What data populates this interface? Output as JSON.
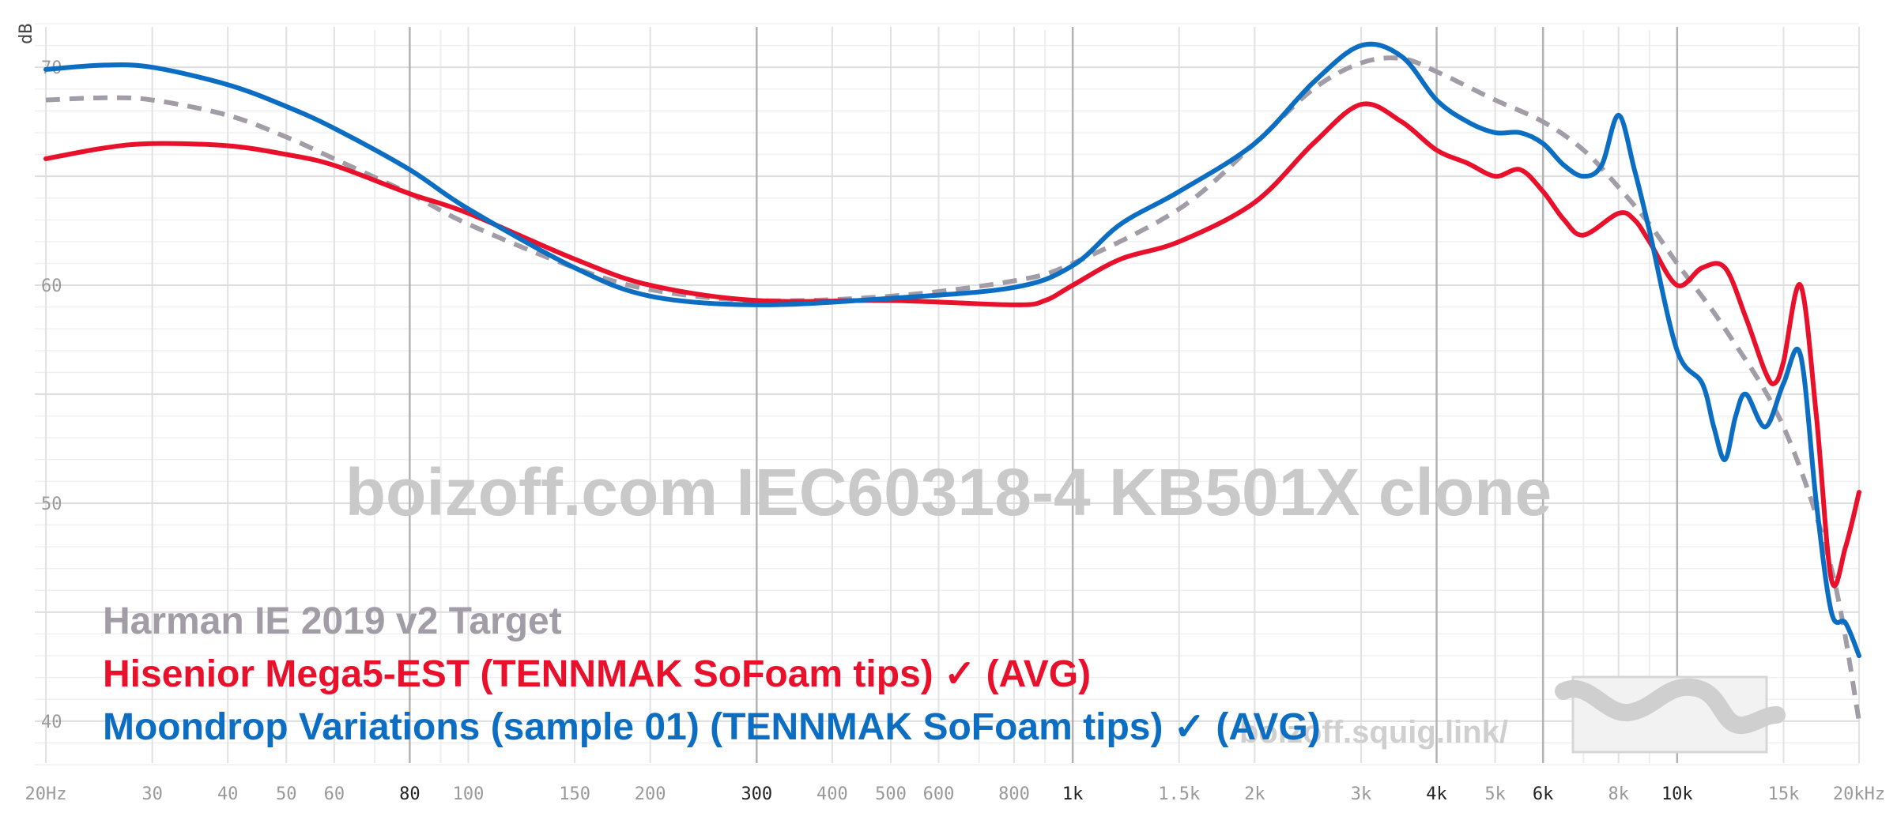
{
  "chart_data": {
    "type": "line",
    "title": "",
    "xlabel": "",
    "ylabel": "dB",
    "x_scale": "log",
    "xlim": [
      20,
      20000
    ],
    "ylim": [
      38,
      72
    ],
    "grid": true,
    "legend_position": "bottom-left",
    "watermark": "boizoff.com IEC60318-4 KB501X clone",
    "site_label": "boizoff.squig.link/",
    "x_ticks": [
      {
        "value": 20,
        "label": "20Hz",
        "major": false
      },
      {
        "value": 30,
        "label": "30",
        "major": false
      },
      {
        "value": 40,
        "label": "40",
        "major": false
      },
      {
        "value": 50,
        "label": "50",
        "major": false
      },
      {
        "value": 60,
        "label": "60",
        "major": false
      },
      {
        "value": 80,
        "label": "80",
        "major": true
      },
      {
        "value": 100,
        "label": "100",
        "major": false
      },
      {
        "value": 150,
        "label": "150",
        "major": false
      },
      {
        "value": 200,
        "label": "200",
        "major": false
      },
      {
        "value": 300,
        "label": "300",
        "major": true
      },
      {
        "value": 400,
        "label": "400",
        "major": false
      },
      {
        "value": 500,
        "label": "500",
        "major": false
      },
      {
        "value": 600,
        "label": "600",
        "major": false
      },
      {
        "value": 800,
        "label": "800",
        "major": false
      },
      {
        "value": 1000,
        "label": "1k",
        "major": true
      },
      {
        "value": 1500,
        "label": "1.5k",
        "major": false
      },
      {
        "value": 2000,
        "label": "2k",
        "major": false
      },
      {
        "value": 3000,
        "label": "3k",
        "major": false
      },
      {
        "value": 4000,
        "label": "4k",
        "major": true
      },
      {
        "value": 5000,
        "label": "5k",
        "major": false
      },
      {
        "value": 6000,
        "label": "6k",
        "major": true
      },
      {
        "value": 8000,
        "label": "8k",
        "major": false
      },
      {
        "value": 10000,
        "label": "10k",
        "major": true
      },
      {
        "value": 15000,
        "label": "15k",
        "major": false
      },
      {
        "value": 20000,
        "label": "20kHz",
        "major": false
      }
    ],
    "y_ticks": [
      {
        "value": 40,
        "label": "40"
      },
      {
        "value": 50,
        "label": "50"
      },
      {
        "value": 60,
        "label": "60"
      },
      {
        "value": 70,
        "label": "70"
      }
    ],
    "series": [
      {
        "name": "Harman IE 2019 v2 Target",
        "color": "#a29ca6",
        "dashed": true,
        "x": [
          20,
          25,
          30,
          40,
          50,
          60,
          80,
          100,
          150,
          200,
          300,
          500,
          800,
          1000,
          1500,
          2000,
          2500,
          3000,
          3500,
          4000,
          5000,
          6000,
          7000,
          8000,
          9000,
          10000,
          12000,
          15000,
          18000,
          20000
        ],
        "y": [
          68.5,
          68.6,
          68.5,
          67.8,
          66.8,
          65.8,
          64.2,
          62.8,
          60.8,
          59.8,
          59.3,
          59.5,
          60.2,
          61.0,
          63.5,
          66.5,
          69.0,
          70.2,
          70.4,
          69.8,
          68.5,
          67.5,
          66.2,
          64.5,
          62.8,
          61.0,
          58.0,
          53.5,
          47.0,
          40.0
        ]
      },
      {
        "name": "Hisenior Mega5-EST (TENNMAK SoFoam tips) ✓ (AVG)",
        "color": "#e8102a",
        "dashed": false,
        "x": [
          20,
          25,
          30,
          40,
          50,
          60,
          80,
          100,
          150,
          200,
          300,
          500,
          800,
          900,
          1000,
          1200,
          1500,
          2000,
          2500,
          3000,
          3500,
          4000,
          4500,
          5000,
          5500,
          6000,
          6500,
          7000,
          8000,
          8500,
          9000,
          10000,
          11000,
          12000,
          13000,
          14000,
          14500,
          15000,
          16000,
          17000,
          18000,
          19000,
          20000
        ],
        "y": [
          65.8,
          66.3,
          66.5,
          66.4,
          66.0,
          65.5,
          64.2,
          63.3,
          61.2,
          60.0,
          59.3,
          59.3,
          59.1,
          59.3,
          60.0,
          61.2,
          62.0,
          63.8,
          66.5,
          68.3,
          67.5,
          66.2,
          65.6,
          65.0,
          65.3,
          64.3,
          63.0,
          62.3,
          63.3,
          63.0,
          62.0,
          60.0,
          60.8,
          60.8,
          58.5,
          56.0,
          55.5,
          56.5,
          60.0,
          54.0,
          46.5,
          48.0,
          50.5
        ]
      },
      {
        "name": "Moondrop Variations (sample 01) (TENNMAK SoFoam tips) ✓ (AVG)",
        "color": "#0b6ec2",
        "dashed": false,
        "x": [
          20,
          25,
          30,
          40,
          50,
          60,
          80,
          100,
          150,
          200,
          300,
          500,
          800,
          1000,
          1200,
          1500,
          2000,
          2500,
          3000,
          3500,
          4000,
          4500,
          5000,
          5500,
          6000,
          6500,
          7000,
          7500,
          8000,
          8500,
          9000,
          10000,
          11000,
          11500,
          12000,
          12500,
          13000,
          14000,
          15000,
          16000,
          17000,
          18000,
          19000,
          20000
        ],
        "y": [
          69.9,
          70.1,
          70.0,
          69.2,
          68.2,
          67.2,
          65.3,
          63.5,
          60.8,
          59.5,
          59.1,
          59.4,
          59.9,
          60.9,
          62.8,
          64.3,
          66.5,
          69.3,
          71.0,
          70.5,
          68.5,
          67.5,
          67.0,
          67.0,
          66.5,
          65.5,
          65.0,
          65.5,
          67.8,
          65.3,
          62.5,
          57.0,
          55.5,
          53.5,
          52.0,
          54.0,
          55.0,
          53.5,
          55.5,
          56.8,
          50.0,
          45.0,
          44.5,
          43.0
        ]
      }
    ]
  }
}
